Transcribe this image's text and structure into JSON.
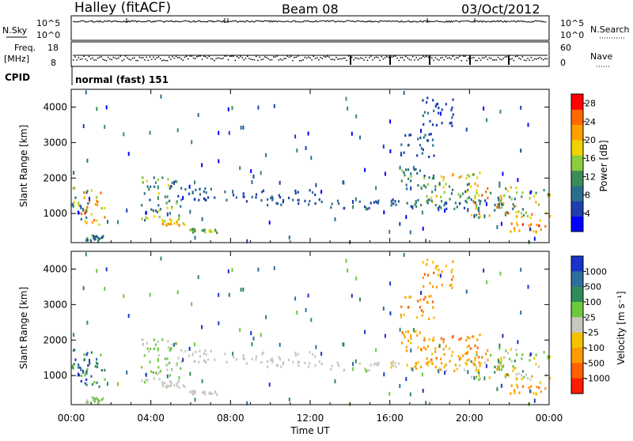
{
  "header": {
    "title": "Halley (fitACF)",
    "beam": "Beam 08",
    "date": "03/Oct/2012"
  },
  "top_panels": {
    "nsky_label": "N.Sky",
    "nsearch_label": "N.Search",
    "nsky_ticks": [
      "10^5",
      "10^0"
    ],
    "nsearch_ticks": [
      "10^5",
      "10^0"
    ],
    "freq_label_line1": "Freq.",
    "freq_label_line2": "[MHz]",
    "freq_ticks": [
      "18",
      "8"
    ],
    "nave_label": "Nave",
    "nave_ticks": [
      "60",
      "0"
    ],
    "cpid_label": "CPID",
    "cpid_text": "normal (fast) 151"
  },
  "colors": {
    "power_scale": [
      "#0000ff",
      "#1f3fae",
      "#2a6e8e",
      "#3c8c5a",
      "#8ccd3c",
      "#f0d200",
      "#ff9f00",
      "#ff6a00",
      "#ff0000"
    ],
    "velocity_scale": [
      "#1a33c8",
      "#2d6e9a",
      "#2f8a5a",
      "#6ec83c",
      "#c8c8c0",
      "#f5c000",
      "#ff9a00",
      "#ff6000",
      "#ff1a00"
    ]
  },
  "chart_data": [
    {
      "type": "heatmap",
      "panel": "power",
      "title": "",
      "xlabel": "Time UT",
      "ylabel": "Slant Range [km]",
      "x_ticks": [
        "00:00",
        "04:00",
        "08:00",
        "12:00",
        "16:00",
        "20:00",
        "00:00"
      ],
      "xlim": [
        0,
        24
      ],
      "y_ticks": [
        "1000",
        "2000",
        "3000",
        "4000"
      ],
      "ylim": [
        180,
        4500
      ],
      "colorbar_label": "Power [dB]",
      "colorbar_ticks": [
        "4",
        "8",
        "12",
        "16",
        "20",
        "24",
        "28"
      ],
      "colorbar_range": [
        0,
        30
      ],
      "bands": [
        {
          "t0": 0.0,
          "t1": 1.7,
          "r0": 700,
          "r1": 1850,
          "v": [
            6,
            28
          ]
        },
        {
          "t0": 0.6,
          "t1": 1.6,
          "r0": 250,
          "r1": 420,
          "v": [
            6,
            14
          ]
        },
        {
          "t0": 3.5,
          "t1": 5.5,
          "r0": 780,
          "r1": 2050,
          "v": [
            6,
            18
          ]
        },
        {
          "t0": 4.5,
          "t1": 5.7,
          "r0": 700,
          "r1": 900,
          "v": [
            14,
            26
          ]
        },
        {
          "t0": 5.8,
          "t1": 7.3,
          "r0": 480,
          "r1": 600,
          "v": [
            10,
            20
          ]
        },
        {
          "t0": 5.3,
          "t1": 8.5,
          "r0": 1400,
          "r1": 1750,
          "v": [
            4,
            9
          ]
        },
        {
          "t0": 8.5,
          "t1": 12.5,
          "r0": 1250,
          "r1": 1700,
          "v": [
            4,
            9
          ]
        },
        {
          "t0": 12.5,
          "t1": 16.5,
          "r0": 1150,
          "r1": 1400,
          "v": [
            4,
            9
          ]
        },
        {
          "t0": 16.5,
          "t1": 18.5,
          "r0": 1700,
          "r1": 2300,
          "v": [
            6,
            16
          ]
        },
        {
          "t0": 17.8,
          "t1": 20.5,
          "r0": 1300,
          "r1": 2200,
          "v": [
            8,
            22
          ]
        },
        {
          "t0": 16.0,
          "t1": 22.5,
          "r0": 1150,
          "r1": 1450,
          "v": [
            4,
            12
          ]
        },
        {
          "t0": 20.0,
          "t1": 24.0,
          "r0": 900,
          "r1": 1800,
          "v": [
            8,
            26
          ]
        },
        {
          "t0": 22.0,
          "t1": 23.9,
          "r0": 500,
          "r1": 850,
          "v": [
            18,
            28
          ]
        },
        {
          "t0": 16.5,
          "t1": 18.2,
          "r0": 2600,
          "r1": 3300,
          "v": [
            4,
            8
          ]
        },
        {
          "t0": 17.6,
          "t1": 19.2,
          "r0": 3500,
          "r1": 4300,
          "v": [
            4,
            8
          ]
        }
      ]
    },
    {
      "type": "heatmap",
      "panel": "velocity",
      "title": "",
      "xlabel": "Time UT",
      "ylabel": "Slant Range [km]",
      "x_ticks": [
        "00:00",
        "04:00",
        "08:00",
        "12:00",
        "16:00",
        "20:00",
        "00:00"
      ],
      "xlim": [
        0,
        24
      ],
      "y_ticks": [
        "1000",
        "2000",
        "3000",
        "4000"
      ],
      "ylim": [
        180,
        4500
      ],
      "colorbar_label": "Velocity [m s⁻¹]",
      "colorbar_ticks": [
        "1000",
        "500",
        "100",
        "25",
        "-25",
        "-100",
        "-500",
        "-1000"
      ],
      "bands": [
        {
          "t0": 0.0,
          "t1": 1.7,
          "r0": 700,
          "r1": 1850,
          "v": [
            0,
            3
          ]
        },
        {
          "t0": 0.6,
          "t1": 1.6,
          "r0": 250,
          "r1": 420,
          "v": [
            3,
            4
          ]
        },
        {
          "t0": 3.5,
          "t1": 5.5,
          "r0": 780,
          "r1": 2050,
          "v": [
            3,
            4
          ]
        },
        {
          "t0": 4.5,
          "t1": 5.7,
          "r0": 700,
          "r1": 900,
          "v": [
            4,
            4
          ]
        },
        {
          "t0": 5.8,
          "t1": 7.3,
          "r0": 480,
          "r1": 600,
          "v": [
            4,
            4
          ]
        },
        {
          "t0": 5.3,
          "t1": 8.5,
          "r0": 1400,
          "r1": 1750,
          "v": [
            4,
            4
          ]
        },
        {
          "t0": 8.5,
          "t1": 12.5,
          "r0": 1250,
          "r1": 1700,
          "v": [
            4,
            4
          ]
        },
        {
          "t0": 12.5,
          "t1": 16.5,
          "r0": 1150,
          "r1": 1400,
          "v": [
            4,
            4
          ]
        },
        {
          "t0": 16.5,
          "t1": 18.5,
          "r0": 1700,
          "r1": 2300,
          "v": [
            5,
            7
          ]
        },
        {
          "t0": 17.8,
          "t1": 20.5,
          "r0": 1300,
          "r1": 2200,
          "v": [
            5,
            7
          ]
        },
        {
          "t0": 16.0,
          "t1": 22.5,
          "r0": 1150,
          "r1": 1450,
          "v": [
            4,
            6
          ]
        },
        {
          "t0": 20.0,
          "t1": 24.0,
          "r0": 900,
          "r1": 1800,
          "v": [
            2,
            6
          ]
        },
        {
          "t0": 22.0,
          "t1": 23.9,
          "r0": 500,
          "r1": 850,
          "v": [
            5,
            7
          ]
        },
        {
          "t0": 16.5,
          "t1": 18.2,
          "r0": 2600,
          "r1": 3300,
          "v": [
            5,
            7
          ]
        },
        {
          "t0": 17.6,
          "t1": 19.2,
          "r0": 3500,
          "r1": 4300,
          "v": [
            5,
            7
          ]
        }
      ]
    }
  ]
}
